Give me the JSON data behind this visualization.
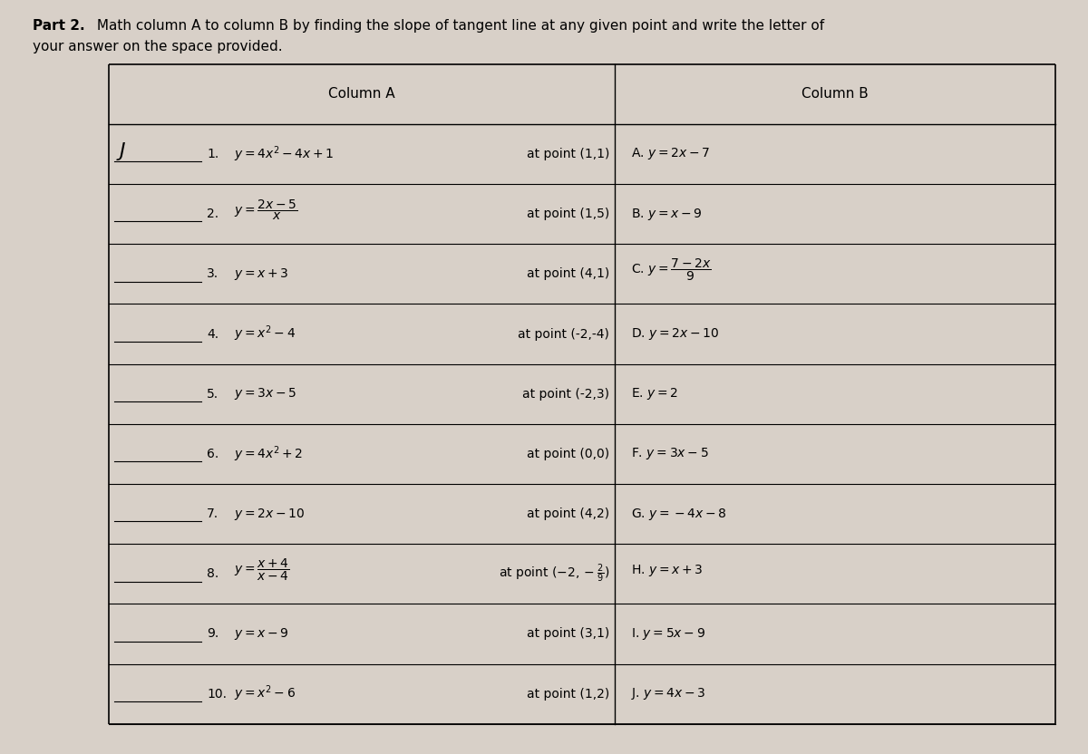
{
  "title_part1": "Part 2.",
  "title_part2": " Math column A to column B by finding the slope of tangent line at any given point and write the letter of",
  "title_line2": "your answer on the space provided.",
  "bg_color": "#d8d0c8",
  "table_bg": "#e8e2da",
  "col_a_header": "Column A",
  "col_b_header": "Column B",
  "col_a_items": [
    {
      "num": "1.",
      "answer": "J",
      "func": "$y = 4x^2 - 4x + 1$",
      "point": "at point (1,1)"
    },
    {
      "num": "2.",
      "answer": "",
      "func": "$y = \\dfrac{2x-5}{x}$",
      "point": "at point (1,5)"
    },
    {
      "num": "3.",
      "answer": "",
      "func": "$y = x + 3$",
      "point": "at point (4,1)"
    },
    {
      "num": "4.",
      "answer": "",
      "func": "$y = x^2 - 4$",
      "point": "at point (-2,-4)"
    },
    {
      "num": "5.",
      "answer": "",
      "func": "$y = 3x - 5$",
      "point": "at point (-2,3)"
    },
    {
      "num": "6.",
      "answer": "",
      "func": "$y = 4x^2 + 2$",
      "point": "at point (0,0)"
    },
    {
      "num": "7.",
      "answer": "",
      "func": "$y = 2x - 10$",
      "point": "at point (4,2)"
    },
    {
      "num": "8.",
      "answer": "",
      "func": "$y = \\dfrac{x+4}{x-4}$",
      "point": "at point $(-2, -\\dfrac{2}{9})$"
    },
    {
      "num": "9.",
      "answer": "",
      "func": "$y = x - 9$",
      "point": "at point (3,1)"
    },
    {
      "num": "10.",
      "answer": "",
      "func": "$y = x^2 - 6$",
      "point": "at point (1,2)"
    }
  ],
  "col_b_items": [
    "A. $y = 2x - 7$",
    "B. $y = x - 9$",
    "C. $y = \\dfrac{7-2x}{9}$",
    "D. $y = 2x - 10$",
    "E. $y = 2$",
    "F. $y = 3x - 5$",
    "G. $y = -4x - 8$",
    "H. $y = x + 3$",
    "I. $y = 5x - 9$",
    "J. $y = 4x - 3$"
  ]
}
